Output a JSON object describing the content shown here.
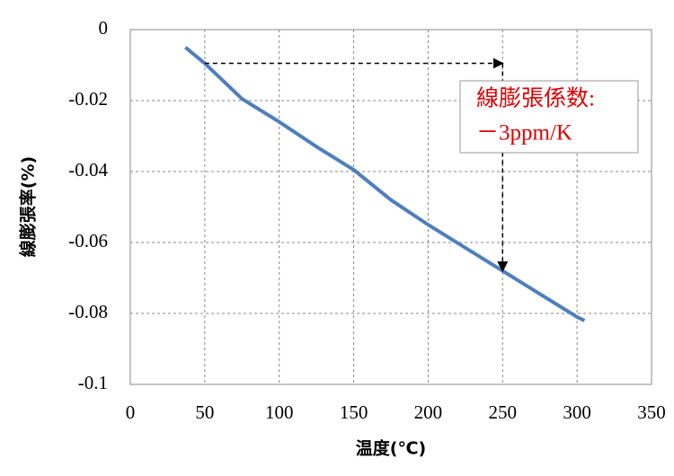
{
  "chart_data": {
    "type": "line",
    "x_label": "温度(℃)",
    "y_label": "線膨張率(%)",
    "x": [
      37,
      50,
      75,
      100,
      125,
      150,
      175,
      200,
      225,
      250,
      275,
      300,
      305
    ],
    "series": [
      {
        "color": "#4f7fbc",
        "values": [
          -0.005,
          -0.0095,
          -0.0195,
          -0.026,
          -0.033,
          -0.0395,
          -0.048,
          -0.055,
          -0.0615,
          -0.068,
          -0.0745,
          -0.081,
          -0.082
        ]
      }
    ],
    "xlim": [
      0,
      350
    ],
    "xticks": [
      0,
      50,
      100,
      150,
      200,
      250,
      300,
      350
    ],
    "ylim": [
      -0.1,
      0
    ],
    "yticks": [
      0,
      -0.02,
      -0.04,
      -0.06,
      -0.08,
      -0.1
    ],
    "grid": true,
    "annotation": [
      "線膨張係数:",
      "－3ppm/K"
    ]
  }
}
